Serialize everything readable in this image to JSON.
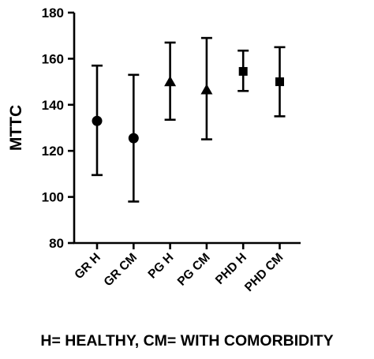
{
  "chart_data": {
    "type": "scatter",
    "ylabel": "MTTC",
    "xlabel": "",
    "ylim": [
      80,
      180
    ],
    "yticks": [
      80,
      100,
      120,
      140,
      160,
      180
    ],
    "categories": [
      "GR H",
      "GR CM",
      "PG H",
      "PG CM",
      "PHD H",
      "PHD CM"
    ],
    "points": [
      {
        "category": "GR H",
        "mean": 133,
        "lower": 109.5,
        "upper": 157,
        "marker": "circle"
      },
      {
        "category": "GR CM",
        "mean": 125.5,
        "lower": 98,
        "upper": 153,
        "marker": "circle"
      },
      {
        "category": "PG H",
        "mean": 150,
        "lower": 133.5,
        "upper": 167,
        "marker": "triangle"
      },
      {
        "category": "PG CM",
        "mean": 146.5,
        "lower": 125,
        "upper": 169,
        "marker": "triangle"
      },
      {
        "category": "PHD H",
        "mean": 154.5,
        "lower": 146,
        "upper": 163.5,
        "marker": "square"
      },
      {
        "category": "PHD CM",
        "mean": 150,
        "lower": 135,
        "upper": 165,
        "marker": "square"
      }
    ],
    "grid": false,
    "legend": "none"
  },
  "footnote": "H= HEALTHY, CM= WITH COMORBIDITY"
}
